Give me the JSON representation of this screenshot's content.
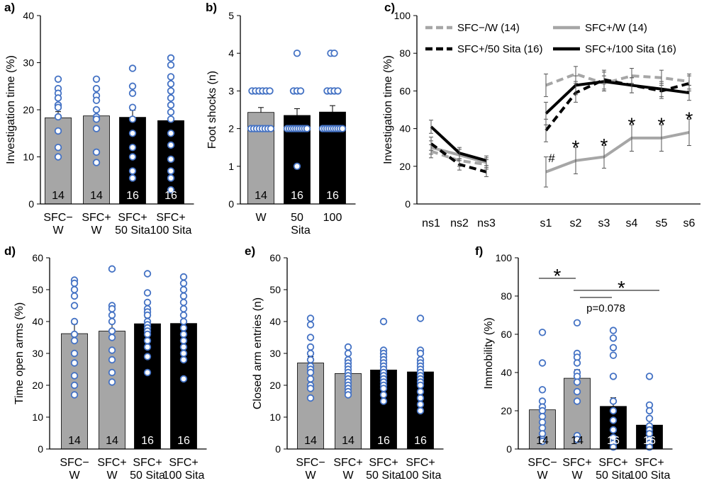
{
  "colors": {
    "gray": "#a6a6a6",
    "black": "#000000",
    "dot": "#4472c4",
    "axis": "#000000"
  },
  "chart_data": [
    {
      "panel": "a)",
      "type": "bar",
      "ylabel": "Investigation time (%)",
      "ylim": [
        0,
        40
      ],
      "yticks": [
        0,
        10,
        20,
        30,
        40
      ],
      "categories": [
        [
          "SFC−",
          "W"
        ],
        [
          "SFC+",
          "W"
        ],
        [
          "SFC+",
          "50 Sita"
        ],
        [
          "SFC+",
          "100 Sita"
        ]
      ],
      "xgroup_label": "",
      "values": [
        18.3,
        18.7,
        18.4,
        17.7
      ],
      "errors": [
        1.3,
        1.3,
        1.5,
        1.7
      ],
      "bar_colors": [
        "gray",
        "gray",
        "black",
        "black"
      ],
      "n_labels": [
        "14",
        "14",
        "16",
        "16"
      ],
      "points": [
        [
          26.5,
          24.5,
          23.5,
          22.5,
          21.0,
          20.5,
          18.5,
          15.5,
          12.0,
          10.0
        ],
        [
          26.5,
          24.5,
          23.0,
          22.0,
          20.0,
          18.5,
          18.0,
          16.0,
          11.0,
          8.8
        ],
        [
          28.8,
          25.0,
          23.5,
          20.5,
          18.0,
          15.0,
          12.0,
          10.0,
          7.0,
          5.5
        ],
        [
          31.0,
          29.5,
          27.0,
          25.5,
          24.0,
          22.5,
          21.0,
          19.5,
          18.0,
          15.0,
          12.5,
          9.5,
          7.0,
          5.5,
          3.0
        ]
      ]
    },
    {
      "panel": "b)",
      "type": "bar",
      "ylabel": "Foot shocks (n)",
      "ylim": [
        0,
        5
      ],
      "yticks": [
        0,
        1,
        2,
        3,
        4,
        5
      ],
      "categories": [
        [
          "W"
        ],
        [
          "50"
        ],
        [
          "100"
        ]
      ],
      "xgroup_label": "Sita",
      "values": [
        2.43,
        2.35,
        2.44
      ],
      "errors": [
        0.13,
        0.18,
        0.17
      ],
      "bar_colors": [
        "gray",
        "black",
        "black"
      ],
      "n_labels": [
        "14",
        "16",
        "16"
      ],
      "points": [
        [
          3,
          3,
          3,
          3,
          3,
          3,
          2,
          2,
          2,
          2,
          2,
          2,
          2,
          2
        ],
        [
          4,
          3,
          3,
          3,
          2,
          2,
          2,
          2,
          2,
          2,
          2,
          2,
          2,
          2,
          1
        ],
        [
          4,
          4,
          3,
          3,
          3,
          3,
          2,
          2,
          2,
          2,
          2,
          2,
          2,
          2,
          2,
          2
        ]
      ]
    },
    {
      "panel": "c)",
      "type": "line",
      "ylabel": "Investigation time (%)",
      "ylim": [
        0,
        100
      ],
      "yticks": [
        0,
        20,
        40,
        60,
        80,
        100
      ],
      "x": [
        "ns1",
        "ns2",
        "ns3",
        "s1",
        "s2",
        "s3",
        "s4",
        "s5",
        "s6"
      ],
      "series": [
        {
          "name": "SFC−/W (14)",
          "color": "gray",
          "dash": true,
          "values": [
            28,
            23,
            21,
            63,
            69,
            64,
            68,
            67,
            65
          ],
          "errors": [
            3.5,
            3,
            2.5,
            6,
            4,
            4,
            4,
            4,
            4
          ]
        },
        {
          "name": "SFC+/W (14)",
          "color": "gray",
          "dash": false,
          "values": [
            30,
            26,
            22,
            17,
            23,
            25,
            35,
            35,
            38
          ],
          "errors": [
            3.5,
            3,
            2.5,
            8,
            7,
            6,
            7,
            7,
            7
          ]
        },
        {
          "name": "SFC+/50 Sita (16)",
          "color": "black",
          "dash": true,
          "values": [
            32,
            21,
            17,
            39,
            59,
            66,
            63,
            60,
            64
          ],
          "errors": [
            3.5,
            3,
            2.5,
            6,
            5,
            5,
            4,
            4,
            4
          ]
        },
        {
          "name": "SFC+/100 Sita (16)",
          "color": "black",
          "dash": false,
          "values": [
            41,
            27,
            23,
            48,
            63,
            65,
            63,
            61,
            59
          ],
          "errors": [
            3.5,
            3,
            2.5,
            6,
            5,
            5,
            4,
            4,
            4
          ]
        }
      ],
      "annotations": [
        {
          "text": "#",
          "x": "s1",
          "y": 24
        },
        {
          "text": "*",
          "x": "s2",
          "y": 31
        },
        {
          "text": "*",
          "x": "s3",
          "y": 32
        },
        {
          "text": "*",
          "x": "s4",
          "y": 43
        },
        {
          "text": "*",
          "x": "s5",
          "y": 43
        },
        {
          "text": "*",
          "x": "s6",
          "y": 46
        }
      ]
    },
    {
      "panel": "d)",
      "type": "bar",
      "ylabel": "Time open arms (%)",
      "ylim": [
        0,
        60
      ],
      "yticks": [
        0,
        10,
        20,
        30,
        40,
        50,
        60
      ],
      "categories": [
        [
          "SFC−",
          "W"
        ],
        [
          "SFC+",
          "W"
        ],
        [
          "SFC+",
          "50 Sita"
        ],
        [
          "SFC+",
          "100 Sita"
        ]
      ],
      "xgroup_label": "",
      "values": [
        36.2,
        37.0,
        39.3,
        39.4
      ],
      "errors": [
        3.0,
        2.7,
        1.9,
        2.2
      ],
      "bar_colors": [
        "gray",
        "gray",
        "black",
        "black"
      ],
      "n_labels": [
        "14",
        "14",
        "16",
        "16"
      ],
      "points": [
        [
          53,
          52,
          50,
          48,
          45,
          40,
          36,
          34,
          30,
          27,
          23,
          20,
          17
        ],
        [
          56.5,
          45,
          44,
          42,
          40,
          37,
          35,
          31,
          28,
          24,
          21
        ],
        [
          55,
          49,
          46,
          44,
          43,
          42,
          40,
          39,
          38,
          37,
          36,
          34,
          32,
          29,
          24
        ],
        [
          54,
          52,
          50,
          48,
          46,
          44,
          42,
          40,
          38,
          36,
          34,
          32,
          30,
          28,
          22
        ]
      ]
    },
    {
      "panel": "e)",
      "type": "bar",
      "ylabel": "Closed arm entries (n)",
      "ylim": [
        0,
        60
      ],
      "yticks": [
        0,
        10,
        20,
        30,
        40,
        50,
        60
      ],
      "categories": [
        [
          "SFC−",
          "W"
        ],
        [
          "SFC+",
          "W"
        ],
        [
          "SFC+",
          "50 Sita"
        ],
        [
          "SFC+",
          "100 Sita"
        ]
      ],
      "xgroup_label": "",
      "values": [
        27.0,
        23.7,
        24.8,
        24.2
      ],
      "errors": [
        2.0,
        1.2,
        1.5,
        1.6
      ],
      "bar_colors": [
        "gray",
        "gray",
        "black",
        "black"
      ],
      "n_labels": [
        "14",
        "14",
        "16",
        "16"
      ],
      "points": [
        [
          41,
          39,
          35,
          32,
          30,
          28,
          26,
          25,
          24,
          22,
          20,
          19,
          16
        ],
        [
          32,
          30,
          28,
          27,
          26,
          25,
          24,
          23,
          22,
          21,
          20,
          19,
          18,
          17
        ],
        [
          40,
          31,
          30,
          29,
          28,
          27,
          26,
          25,
          24,
          23,
          22,
          21,
          20,
          19,
          17,
          15
        ],
        [
          41,
          31,
          30,
          28,
          27,
          26,
          25,
          24,
          23,
          22,
          21,
          20,
          18,
          16,
          14,
          12
        ]
      ]
    },
    {
      "panel": "f)",
      "type": "bar",
      "ylabel": "Immobility (%)",
      "ylim": [
        0,
        100
      ],
      "yticks": [
        0,
        20,
        40,
        60,
        80,
        100
      ],
      "categories": [
        [
          "SFC−",
          "W"
        ],
        [
          "SFC+",
          "W"
        ],
        [
          "SFC+",
          "50 Sita"
        ],
        [
          "SFC+",
          "100 Sita"
        ]
      ],
      "xgroup_label": "",
      "values": [
        20.5,
        37.0,
        22.3,
        12.5
      ],
      "errors": [
        4.0,
        4.5,
        4.5,
        2.5
      ],
      "bar_colors": [
        "gray",
        "gray",
        "black",
        "black"
      ],
      "n_labels": [
        "14",
        "14",
        "16",
        "16"
      ],
      "points": [
        [
          61,
          45,
          31,
          25,
          22,
          20,
          17,
          14,
          11,
          8,
          5,
          4
        ],
        [
          66,
          50,
          48,
          45,
          40,
          38,
          35,
          30,
          25,
          7,
          5
        ],
        [
          62,
          58,
          53,
          49,
          38,
          25,
          20,
          15,
          10,
          6,
          3,
          1
        ],
        [
          38,
          23,
          20,
          16,
          12,
          10,
          8,
          5,
          3,
          1
        ]
      ],
      "significance": [
        {
          "label": "*",
          "from": 0,
          "to": 1
        },
        {
          "label": "*",
          "from": 1,
          "to": 3
        },
        {
          "label": "p=0.078",
          "from": 1,
          "to": 2
        }
      ]
    }
  ]
}
